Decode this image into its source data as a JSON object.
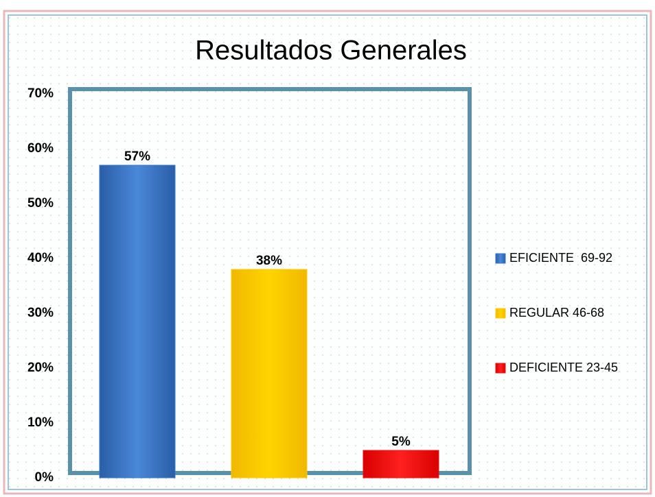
{
  "chart_data": {
    "type": "bar",
    "title": "Resultados Generales",
    "categories": [
      "EFICIENTE  69-92",
      "REGULAR 46-68",
      "DEFICIENTE 23-45"
    ],
    "values": [
      57,
      38,
      5
    ],
    "value_labels": [
      "57%",
      "38%",
      "5%"
    ],
    "colors": [
      "#3a78c8",
      "#ffcc00",
      "#ee1111"
    ],
    "ylim": [
      0,
      70
    ],
    "yticks": [
      {
        "value": 0,
        "label": "0%"
      },
      {
        "value": 10,
        "label": "10%"
      },
      {
        "value": 20,
        "label": "20%"
      },
      {
        "value": 30,
        "label": "30%"
      },
      {
        "value": 40,
        "label": "40%"
      },
      {
        "value": 50,
        "label": "50%"
      },
      {
        "value": 60,
        "label": "60%"
      },
      {
        "value": 70,
        "label": "70%"
      }
    ],
    "legend": "right"
  }
}
